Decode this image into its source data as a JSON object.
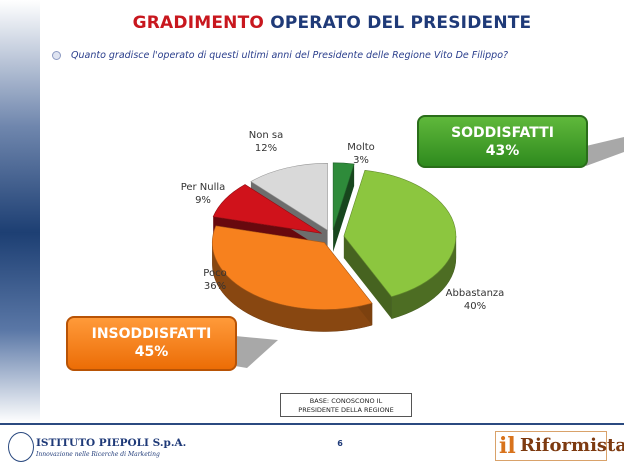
{
  "header": {
    "title_part1": "GRADIMENTO",
    "title_part2": "OPERATO DEL PRESIDENTE",
    "question": "Quanto gradisce l'operato di questi ultimi anni del Presidente delle Regione Vito De Filippo?"
  },
  "callouts": {
    "satisfied": {
      "label": "SODDISFATTI",
      "value": "43%"
    },
    "unsatisfied": {
      "label": "INSODDISFATTI",
      "value": "45%"
    }
  },
  "base_note": {
    "line1": "BASE: CONOSCONO IL",
    "line2": "PRESIDENTE DELLA REGIONE"
  },
  "footer": {
    "page_number": "6",
    "left_logo_name": "ISTITUTO PIEPOLI S.p.A.",
    "left_logo_tagline": "Innovazione nelle Ricerche di Marketing",
    "right_logo_il": "il",
    "right_logo_name": "Riformista"
  },
  "chart_data": {
    "type": "pie",
    "style": "3d exploded",
    "slices": [
      {
        "label": "Molto",
        "value": 3,
        "display": "3%",
        "color": "#2e8b3a"
      },
      {
        "label": "Abbastanza",
        "value": 40,
        "display": "40%",
        "color": "#8cc63f"
      },
      {
        "label": "Poco",
        "value": 36,
        "display": "36%",
        "color": "#f7811e"
      },
      {
        "label": "Per Nulla",
        "value": 9,
        "display": "9%",
        "color": "#d0121b"
      },
      {
        "label": "Non sa",
        "value": 12,
        "display": "12%",
        "color": "#d9d9d9"
      }
    ]
  }
}
